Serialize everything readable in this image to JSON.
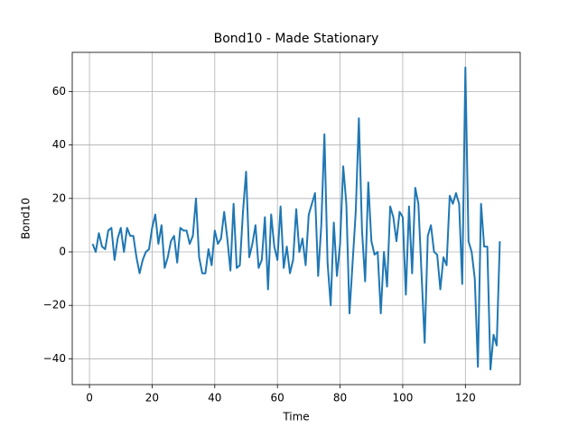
{
  "chart_data": {
    "type": "line",
    "title": "Bond10 - Made Stationary",
    "xlabel": "Time",
    "ylabel": "Bond10",
    "x": [
      1,
      2,
      3,
      4,
      5,
      6,
      7,
      8,
      9,
      10,
      11,
      12,
      13,
      14,
      15,
      16,
      17,
      18,
      19,
      20,
      21,
      22,
      23,
      24,
      25,
      26,
      27,
      28,
      29,
      30,
      31,
      32,
      33,
      34,
      35,
      36,
      37,
      38,
      39,
      40,
      41,
      42,
      43,
      44,
      45,
      46,
      47,
      48,
      49,
      50,
      51,
      52,
      53,
      54,
      55,
      56,
      57,
      58,
      59,
      60,
      61,
      62,
      63,
      64,
      65,
      66,
      67,
      68,
      69,
      70,
      71,
      72,
      73,
      74,
      75,
      76,
      77,
      78,
      79,
      80,
      81,
      82,
      83,
      84,
      85,
      86,
      87,
      88,
      89,
      90,
      91,
      92,
      93,
      94,
      95,
      96,
      97,
      98,
      99,
      100,
      101,
      102,
      103,
      104,
      105,
      106,
      107,
      108,
      109,
      110,
      111,
      112,
      113,
      114,
      115,
      116,
      117,
      118,
      119,
      120,
      121,
      122,
      123,
      124,
      125,
      126,
      127,
      128,
      129,
      130,
      131
    ],
    "series": [
      {
        "name": "Bond10",
        "color": "#1f77b4",
        "values": [
          3,
          0,
          7,
          2,
          1,
          8,
          9,
          -3,
          5,
          9,
          0,
          9,
          6,
          6,
          -2,
          -8,
          -3,
          0,
          1,
          9,
          14,
          3,
          10,
          -6,
          -2,
          4,
          6,
          -4,
          9,
          8,
          8,
          3,
          6,
          20,
          -2,
          -8,
          -8,
          1,
          -5,
          8,
          3,
          5,
          15,
          5,
          -7,
          18,
          -6,
          -5,
          15,
          30,
          -2,
          3,
          10,
          -6,
          -3,
          13,
          -14,
          14,
          2,
          -3,
          17,
          -6,
          2,
          -8,
          -3,
          16,
          0,
          5,
          -5,
          14,
          18,
          22,
          -9,
          10,
          44,
          -4,
          -20,
          11,
          -9,
          3,
          32,
          18,
          -23,
          -4,
          15,
          50,
          8,
          -11,
          26,
          4,
          -1,
          0,
          -23,
          0,
          -13,
          17,
          13,
          4,
          15,
          13,
          -16,
          17,
          -8,
          24,
          18,
          -8,
          -34,
          6,
          10,
          0,
          -1,
          -14,
          -2,
          -5,
          21,
          18,
          22,
          18,
          -12,
          69,
          4,
          0,
          -10,
          -43,
          18,
          2,
          2,
          -44,
          -31,
          -35,
          4
        ]
      }
    ],
    "xlim": [
      -5.5,
      137.5
    ],
    "ylim": [
      -49.65,
      74.65
    ],
    "xticks": [
      0,
      20,
      40,
      60,
      80,
      100,
      120
    ],
    "yticks": [
      {
        "value": -40,
        "label": "−40"
      },
      {
        "value": -20,
        "label": "−20"
      },
      0,
      20,
      40,
      60
    ],
    "grid": true
  }
}
